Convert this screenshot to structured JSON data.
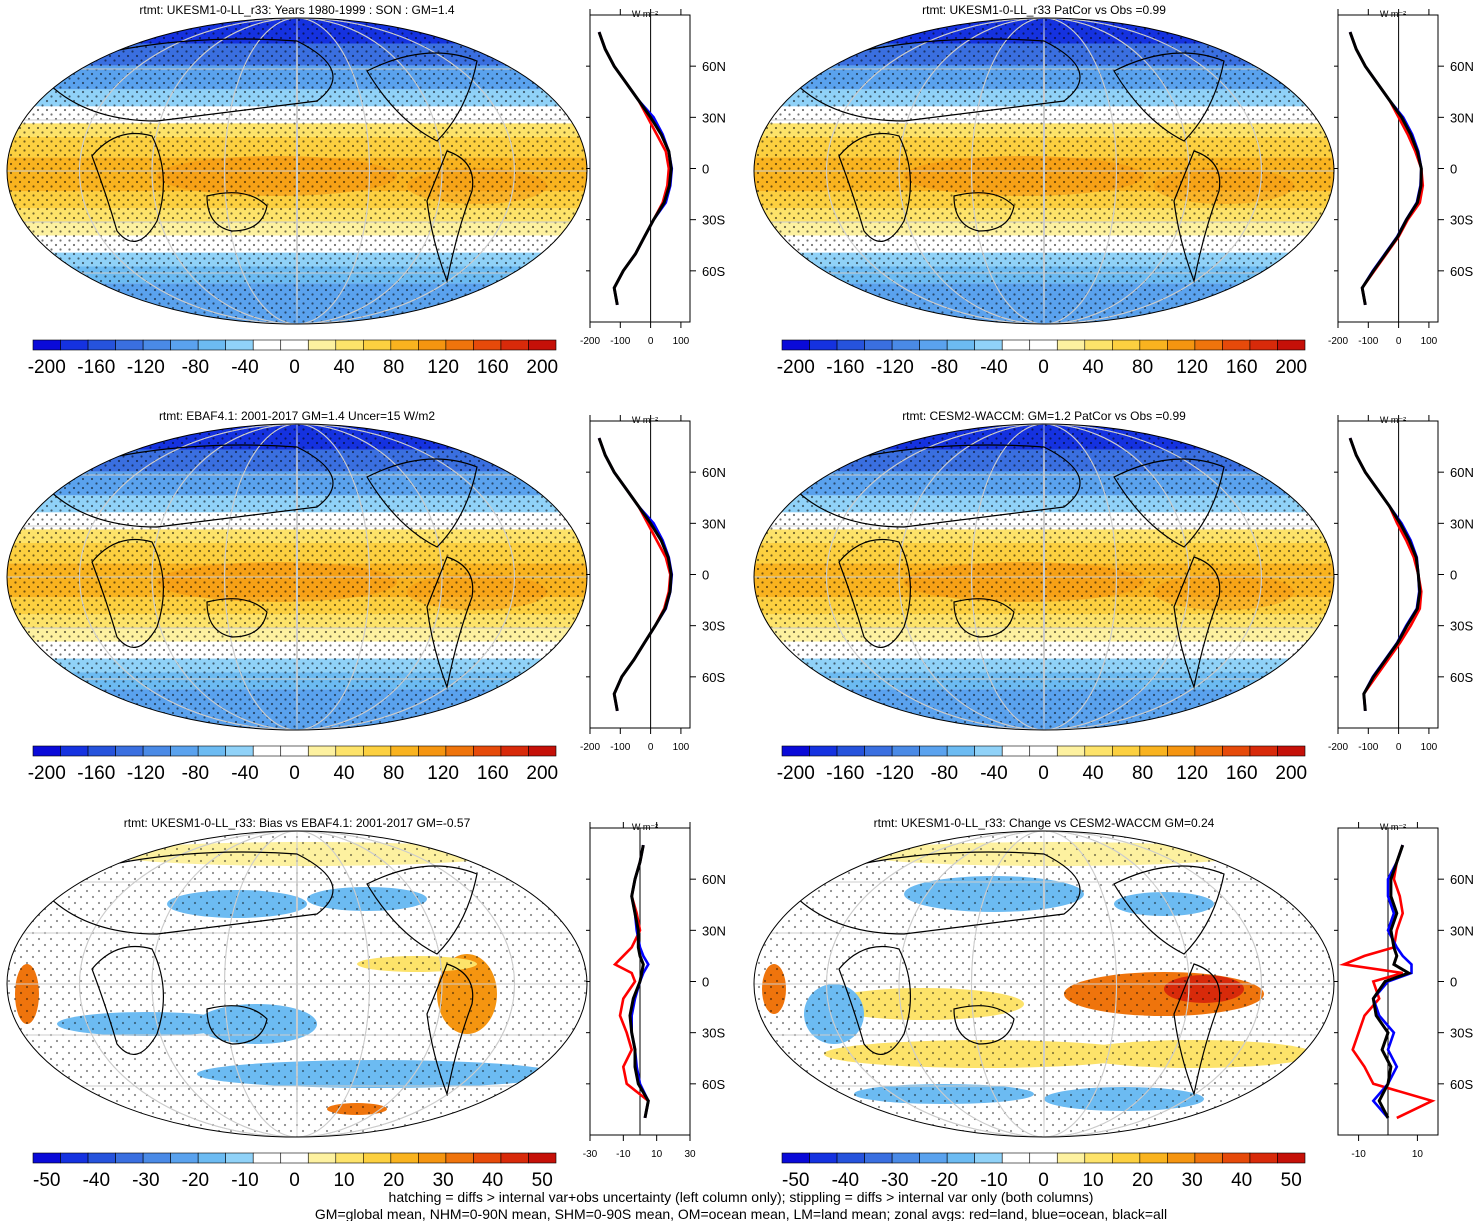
{
  "colors": {
    "background": "#ffffff",
    "land_line": "#ff0000",
    "ocean_line": "#0000ff",
    "all_line": "#000000",
    "colormap": [
      "#0a0ad8",
      "#1532e0",
      "#2653dc",
      "#3a6fe0",
      "#4a8ae6",
      "#5aa2ee",
      "#6cbbf2",
      "#90d2f8",
      "#ffffff",
      "#ffffff",
      "#fdf1a0",
      "#fde36a",
      "#fcd040",
      "#f9b31f",
      "#f59510",
      "#ef740c",
      "#e64a0a",
      "#d82a0a",
      "#c51008"
    ]
  },
  "footer": {
    "line1": "hatching = diffs > internal var+obs uncertainty (left column only); stippling = diffs > internal var only (both columns)",
    "line2": "GM=global mean, NHM=0-90N mean, SHM=0-90S mean, OM=ocean mean, LM=land mean; zonal avgs: red=land, blue=ocean, black=all"
  },
  "panels": [
    {
      "title": "rtmt: UKESM1-0-LL_r33: Years 1980-1999 : SON : GM=1.4",
      "colorbar_labels": [
        "-200",
        "-160",
        "-120",
        "-80",
        "-40",
        "0",
        "40",
        "80",
        "120",
        "160",
        "200"
      ],
      "zonal_xticks": [
        "-200",
        "-100",
        "0",
        "100"
      ],
      "zonal_unit": "W m⁻²",
      "lat_labels": [
        "60N",
        "30N",
        "0",
        "30S",
        "60S"
      ]
    },
    {
      "title": "rtmt: UKESM1-0-LL_r33 PatCor vs Obs =0.99",
      "colorbar_labels": [
        "-200",
        "-160",
        "-120",
        "-80",
        "-40",
        "0",
        "40",
        "80",
        "120",
        "160",
        "200"
      ],
      "zonal_xticks": [
        "-200",
        "-100",
        "0",
        "100"
      ],
      "zonal_unit": "W m⁻²",
      "lat_labels": [
        "60N",
        "30N",
        "0",
        "30S",
        "60S"
      ]
    },
    {
      "title": "rtmt: EBAF4.1: 2001-2017 GM=1.4 Uncer=15 W/m2",
      "colorbar_labels": [
        "-200",
        "-160",
        "-120",
        "-80",
        "-40",
        "0",
        "40",
        "80",
        "120",
        "160",
        "200"
      ],
      "zonal_xticks": [
        "-200",
        "-100",
        "0",
        "100"
      ],
      "zonal_unit": "W m⁻²",
      "lat_labels": [
        "60N",
        "30N",
        "0",
        "30S",
        "60S"
      ]
    },
    {
      "title": "rtmt: CESM2-WACCM: GM=1.2 PatCor vs Obs =0.99",
      "colorbar_labels": [
        "-200",
        "-160",
        "-120",
        "-80",
        "-40",
        "0",
        "40",
        "80",
        "120",
        "160",
        "200"
      ],
      "zonal_xticks": [
        "-200",
        "-100",
        "0",
        "100"
      ],
      "zonal_unit": "W m⁻²",
      "lat_labels": [
        "60N",
        "30N",
        "0",
        "30S",
        "60S"
      ]
    },
    {
      "title": "rtmt: UKESM1-0-LL_r33: Bias vs EBAF4.1: 2001-2017  GM=-0.57",
      "colorbar_labels": [
        "-50",
        "-40",
        "-30",
        "-20",
        "-10",
        "0",
        "10",
        "20",
        "30",
        "40",
        "50"
      ],
      "zonal_xticks": [
        "-30",
        "-10",
        "10",
        "30"
      ],
      "zonal_unit": "W m⁻²",
      "lat_labels": [
        "60N",
        "30N",
        "0",
        "30S",
        "60S"
      ]
    },
    {
      "title": "rtmt: UKESM1-0-LL_r33: Change vs CESM2-WACCM GM=0.24",
      "colorbar_labels": [
        "-50",
        "-40",
        "-30",
        "-20",
        "-10",
        "0",
        "10",
        "20",
        "30",
        "40",
        "50"
      ],
      "zonal_xticks": [
        "-10",
        "10"
      ],
      "zonal_unit": "W m⁻²",
      "lat_labels": [
        "60N",
        "30N",
        "0",
        "30S",
        "60S"
      ]
    }
  ],
  "chart_data": [
    {
      "type": "line",
      "title": "rtmt: UKESM1-0-LL_r33: Years 1980-1999 : SON : GM=1.4",
      "xlabel": "W m⁻²",
      "xlim": [
        -200,
        130
      ],
      "y": [
        80,
        70,
        60,
        50,
        40,
        30,
        20,
        10,
        0,
        -10,
        -20,
        -30,
        -40,
        -50,
        -60,
        -70,
        -80
      ],
      "series": [
        {
          "name": "red=land",
          "values": [
            -170,
            -150,
            -120,
            -80,
            -40,
            -10,
            20,
            50,
            60,
            55,
            40,
            10,
            -20,
            -50,
            -90,
            -120,
            -110
          ]
        },
        {
          "name": "blue=ocean",
          "values": [
            -170,
            -150,
            -120,
            -80,
            -40,
            10,
            40,
            60,
            70,
            65,
            50,
            10,
            -20,
            -50,
            -90,
            -120,
            -110
          ]
        },
        {
          "name": "black=all",
          "values": [
            -170,
            -150,
            -120,
            -80,
            -40,
            0,
            35,
            60,
            68,
            62,
            45,
            10,
            -20,
            -50,
            -90,
            -120,
            -110
          ]
        }
      ]
    },
    {
      "type": "line",
      "title": "rtmt: UKESM1-0-LL_r33 PatCor vs Obs =0.99",
      "xlabel": "W m⁻²",
      "xlim": [
        -200,
        130
      ],
      "y": [
        80,
        70,
        60,
        50,
        40,
        30,
        20,
        10,
        0,
        -10,
        -20,
        -30,
        -40,
        -50,
        -60,
        -70,
        -80
      ],
      "series": [
        {
          "name": "red=land",
          "values": [
            -160,
            -140,
            -110,
            -70,
            -30,
            0,
            30,
            55,
            75,
            80,
            70,
            30,
            0,
            -40,
            -80,
            -120,
            -110
          ]
        },
        {
          "name": "blue=ocean",
          "values": [
            -160,
            -140,
            -110,
            -70,
            -30,
            15,
            45,
            65,
            75,
            72,
            60,
            25,
            -5,
            -45,
            -85,
            -120,
            -110
          ]
        },
        {
          "name": "black=all",
          "values": [
            -160,
            -140,
            -110,
            -70,
            -30,
            10,
            40,
            62,
            75,
            74,
            62,
            26,
            -3,
            -43,
            -83,
            -120,
            -110
          ]
        }
      ]
    },
    {
      "type": "line",
      "title": "rtmt: EBAF4.1: 2001-2017 GM=1.4 Uncer=15 W/m2",
      "xlabel": "W m⁻²",
      "xlim": [
        -200,
        130
      ],
      "y": [
        80,
        70,
        60,
        50,
        40,
        30,
        20,
        10,
        0,
        -10,
        -20,
        -30,
        -40,
        -50,
        -60,
        -70,
        -80
      ],
      "series": [
        {
          "name": "red=land",
          "values": [
            -170,
            -150,
            -120,
            -80,
            -40,
            -10,
            20,
            50,
            65,
            60,
            45,
            15,
            -20,
            -55,
            -95,
            -120,
            -110
          ]
        },
        {
          "name": "blue=ocean",
          "values": [
            -170,
            -150,
            -120,
            -80,
            -40,
            10,
            40,
            60,
            70,
            65,
            50,
            15,
            -20,
            -55,
            -95,
            -120,
            -110
          ]
        },
        {
          "name": "black=all",
          "values": [
            -170,
            -150,
            -120,
            -80,
            -40,
            0,
            35,
            58,
            68,
            64,
            48,
            15,
            -20,
            -55,
            -95,
            -120,
            -110
          ]
        }
      ]
    },
    {
      "type": "line",
      "title": "rtmt: CESM2-WACCM: GM=1.2 PatCor vs Obs =0.99",
      "xlabel": "W m⁻²",
      "xlim": [
        -200,
        130
      ],
      "y": [
        80,
        70,
        60,
        50,
        40,
        30,
        20,
        10,
        0,
        -10,
        -20,
        -30,
        -40,
        -50,
        -60,
        -70,
        -80
      ],
      "series": [
        {
          "name": "red=land",
          "values": [
            -160,
            -140,
            -110,
            -70,
            -30,
            -5,
            25,
            50,
            65,
            75,
            70,
            40,
            5,
            -35,
            -75,
            -115,
            -110
          ]
        },
        {
          "name": "blue=ocean",
          "values": [
            -160,
            -140,
            -110,
            -70,
            -30,
            10,
            40,
            60,
            65,
            68,
            60,
            25,
            -5,
            -45,
            -85,
            -115,
            -110
          ]
        },
        {
          "name": "black=all",
          "values": [
            -160,
            -140,
            -110,
            -70,
            -30,
            5,
            35,
            58,
            65,
            70,
            62,
            28,
            -3,
            -43,
            -83,
            -115,
            -110
          ]
        }
      ]
    },
    {
      "type": "line",
      "title": "rtmt: UKESM1-0-LL_r33: Bias vs EBAF4.1: 2001-2017  GM=-0.57",
      "xlabel": "W m⁻²",
      "xlim": [
        -30,
        30
      ],
      "y": [
        80,
        70,
        60,
        50,
        40,
        30,
        20,
        15,
        10,
        5,
        0,
        -10,
        -20,
        -30,
        -40,
        -50,
        -60,
        -70,
        -80
      ],
      "series": [
        {
          "name": "red=land",
          "values": [
            2,
            0,
            -3,
            -5,
            -2,
            0,
            -5,
            -10,
            -15,
            -5,
            -3,
            -10,
            -12,
            -8,
            -5,
            -10,
            -8,
            5,
            3
          ]
        },
        {
          "name": "blue=ocean",
          "values": [
            2,
            0,
            -3,
            -5,
            -3,
            -2,
            0,
            2,
            5,
            2,
            0,
            -3,
            -5,
            -5,
            -3,
            -2,
            0,
            5,
            3
          ]
        },
        {
          "name": "black=all",
          "values": [
            2,
            0,
            -3,
            -5,
            -3,
            -1,
            -1,
            0,
            2,
            1,
            0,
            -4,
            -6,
            -5,
            -3,
            -3,
            -1,
            5,
            3
          ]
        }
      ]
    },
    {
      "type": "line",
      "title": "rtmt: UKESM1-0-LL_r33: Change vs CESM2-WACCM GM=0.24",
      "xlabel": "W m⁻²",
      "xlim": [
        -17,
        17
      ],
      "y": [
        80,
        70,
        60,
        50,
        40,
        30,
        20,
        15,
        10,
        5,
        0,
        -10,
        -20,
        -30,
        -40,
        -50,
        -60,
        -70,
        -80
      ],
      "series": [
        {
          "name": "red=land",
          "values": [
            5,
            3,
            2,
            4,
            5,
            3,
            2,
            -8,
            -15,
            5,
            -5,
            -3,
            -8,
            -10,
            -12,
            -8,
            -5,
            15,
            3
          ]
        },
        {
          "name": "blue=ocean",
          "values": [
            5,
            3,
            0,
            0,
            2,
            0,
            3,
            5,
            8,
            8,
            0,
            -5,
            -3,
            2,
            0,
            3,
            0,
            -5,
            0
          ]
        },
        {
          "name": "black=all",
          "values": [
            5,
            3,
            1,
            1,
            3,
            1,
            2,
            3,
            2,
            7,
            -1,
            -5,
            -4,
            0,
            -2,
            1,
            0,
            -3,
            0
          ]
        }
      ]
    }
  ]
}
